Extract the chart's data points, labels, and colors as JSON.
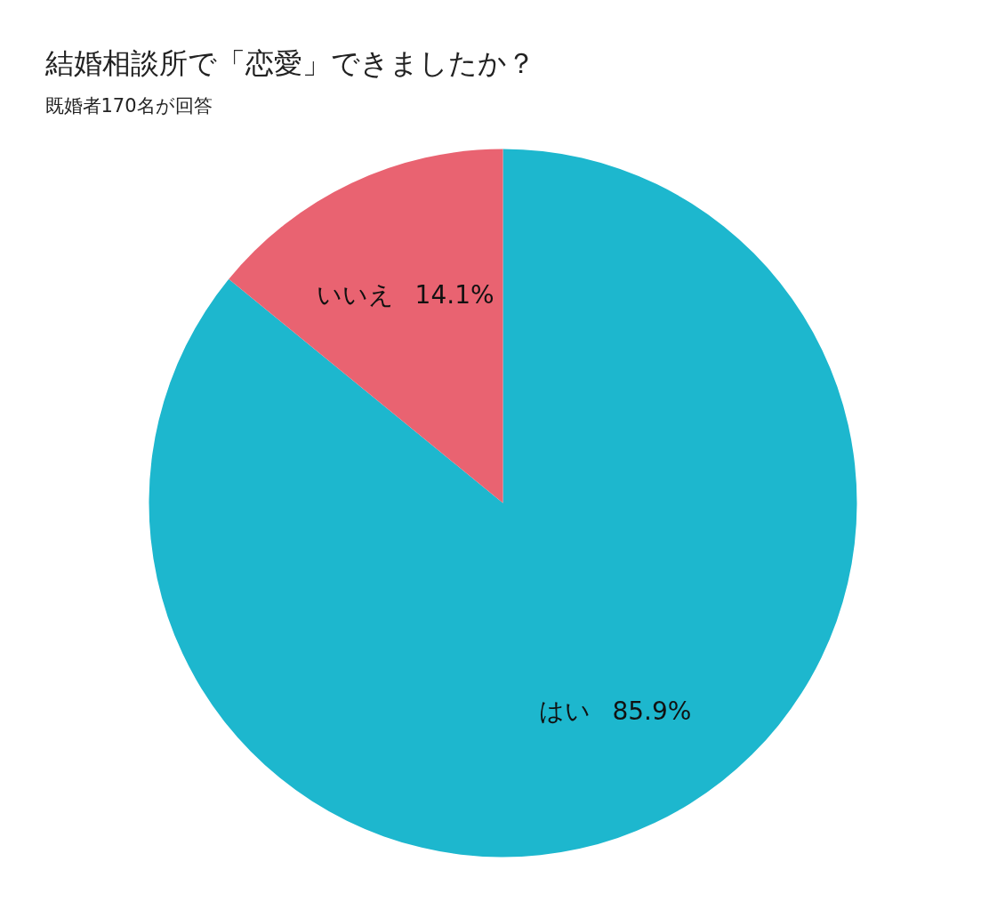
{
  "chart_data": {
    "type": "pie",
    "title": "結婚相談所で「恋愛」できましたか？",
    "subtitle": "既婚者170名が回答",
    "categories": [
      "はい",
      "いいえ"
    ],
    "values": [
      85.9,
      14.1
    ],
    "value_labels": [
      "85.9%",
      "14.1%"
    ],
    "colors": [
      "#1db7ce",
      "#e96371"
    ]
  }
}
